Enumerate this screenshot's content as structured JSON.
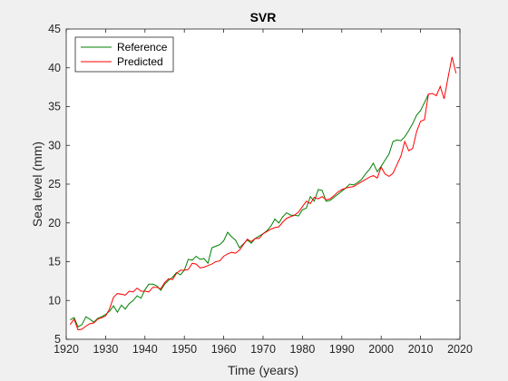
{
  "chart_data": {
    "type": "line",
    "title": "SVR",
    "xlabel": "Time (years)",
    "ylabel": "Sea level (mm)",
    "xlim": [
      1920,
      2020
    ],
    "ylim": [
      5,
      45
    ],
    "xticks": [
      1920,
      1930,
      1940,
      1950,
      1960,
      1970,
      1980,
      1990,
      2000,
      2010,
      2020
    ],
    "yticks": [
      5,
      10,
      15,
      20,
      25,
      30,
      35,
      40,
      45
    ],
    "grid": false,
    "legend_position": "top-left",
    "series": [
      {
        "name": "Reference",
        "color": "#008000",
        "x": [
          1921,
          1922,
          1923,
          1924,
          1925,
          1926,
          1927,
          1928,
          1929,
          1930,
          1931,
          1932,
          1933,
          1934,
          1935,
          1936,
          1937,
          1938,
          1939,
          1940,
          1941,
          1942,
          1943,
          1944,
          1945,
          1946,
          1947,
          1948,
          1949,
          1950,
          1951,
          1952,
          1953,
          1954,
          1955,
          1956,
          1957,
          1958,
          1959,
          1960,
          1961,
          1962,
          1963,
          1964,
          1965,
          1966,
          1967,
          1968,
          1969,
          1970,
          1971,
          1972,
          1973,
          1974,
          1975,
          1976,
          1977,
          1978,
          1979,
          1980,
          1981,
          1982,
          1983,
          1984,
          1985,
          1986,
          1987,
          1988,
          1989,
          1990,
          1991,
          1992,
          1993,
          1994,
          1995,
          1996,
          1997,
          1998,
          1999,
          2000,
          2001,
          2002,
          2003,
          2004,
          2005,
          2006,
          2007,
          2008,
          2009,
          2010,
          2011,
          2012
        ],
        "values": [
          7.5,
          7.8,
          6.6,
          6.9,
          7.9,
          7.6,
          7.2,
          7.7,
          7.9,
          8.2,
          8.6,
          9.3,
          8.5,
          9.4,
          8.9,
          9.6,
          10.0,
          10.6,
          10.3,
          11.4,
          12.1,
          12.1,
          11.9,
          11.3,
          12.1,
          12.6,
          13.0,
          13.6,
          13.3,
          13.9,
          15.3,
          15.2,
          15.7,
          15.3,
          15.4,
          14.8,
          16.8,
          17.0,
          17.2,
          17.7,
          18.8,
          18.2,
          17.8,
          16.8,
          17.3,
          17.8,
          17.4,
          18.0,
          18.3,
          18.6,
          19.0,
          19.6,
          20.5,
          20.0,
          20.8,
          21.3,
          21.0,
          21.0,
          20.9,
          21.7,
          21.9,
          23.4,
          22.8,
          24.3,
          24.2,
          22.8,
          22.9,
          23.3,
          23.7,
          24.1,
          24.5,
          25.0,
          24.9,
          25.2,
          25.6,
          26.3,
          26.9,
          27.7,
          26.6,
          27.3,
          28.1,
          28.9,
          30.5,
          30.7,
          30.6,
          31.1,
          31.9,
          32.8,
          33.9,
          34.5,
          35.5,
          36.6
        ]
      },
      {
        "name": "Predicted",
        "color": "#ff0000",
        "x": [
          1921,
          1922,
          1923,
          1924,
          1925,
          1926,
          1927,
          1928,
          1929,
          1930,
          1931,
          1932,
          1933,
          1934,
          1935,
          1936,
          1937,
          1938,
          1939,
          1940,
          1941,
          1942,
          1943,
          1944,
          1945,
          1946,
          1947,
          1948,
          1949,
          1950,
          1951,
          1952,
          1953,
          1954,
          1955,
          1956,
          1957,
          1958,
          1959,
          1960,
          1961,
          1962,
          1963,
          1964,
          1965,
          1966,
          1967,
          1968,
          1969,
          1970,
          1971,
          1972,
          1973,
          1974,
          1975,
          1976,
          1977,
          1978,
          1979,
          1980,
          1981,
          1982,
          1983,
          1984,
          1985,
          1986,
          1987,
          1988,
          1989,
          1990,
          1991,
          1992,
          1993,
          1994,
          1995,
          1996,
          1997,
          1998,
          1999,
          2000,
          2001,
          2002,
          2003,
          2004,
          2005,
          2006,
          2007,
          2008,
          2009,
          2010,
          2011,
          2012,
          2013,
          2014,
          2015,
          2016,
          2017,
          2018,
          2019
        ],
        "values": [
          6.9,
          7.6,
          6.2,
          6.3,
          6.7,
          7.0,
          7.1,
          7.6,
          7.8,
          8.0,
          8.9,
          10.4,
          10.9,
          10.8,
          10.7,
          11.2,
          11.1,
          11.6,
          11.2,
          11.2,
          11.1,
          11.7,
          11.7,
          11.5,
          12.3,
          12.8,
          12.7,
          13.5,
          13.9,
          13.9,
          14.0,
          14.8,
          14.7,
          14.2,
          14.3,
          14.5,
          14.7,
          15.0,
          15.1,
          15.7,
          16.0,
          16.2,
          16.1,
          16.5,
          17.2,
          17.9,
          17.6,
          18.0,
          18.0,
          18.6,
          18.9,
          19.2,
          19.4,
          19.5,
          20.1,
          20.6,
          20.8,
          21.0,
          21.4,
          22.1,
          22.8,
          22.5,
          23.3,
          23.1,
          23.4,
          23.0,
          23.1,
          23.5,
          24.0,
          24.3,
          24.5,
          24.6,
          24.7,
          25.0,
          25.3,
          25.6,
          25.9,
          26.1,
          25.8,
          27.2,
          26.3,
          26.0,
          26.4,
          27.5,
          28.6,
          30.5,
          29.3,
          29.6,
          31.8,
          33.1,
          33.3,
          36.6,
          36.7,
          36.4,
          37.6,
          36.0,
          38.8,
          41.4,
          39.3
        ]
      }
    ]
  }
}
